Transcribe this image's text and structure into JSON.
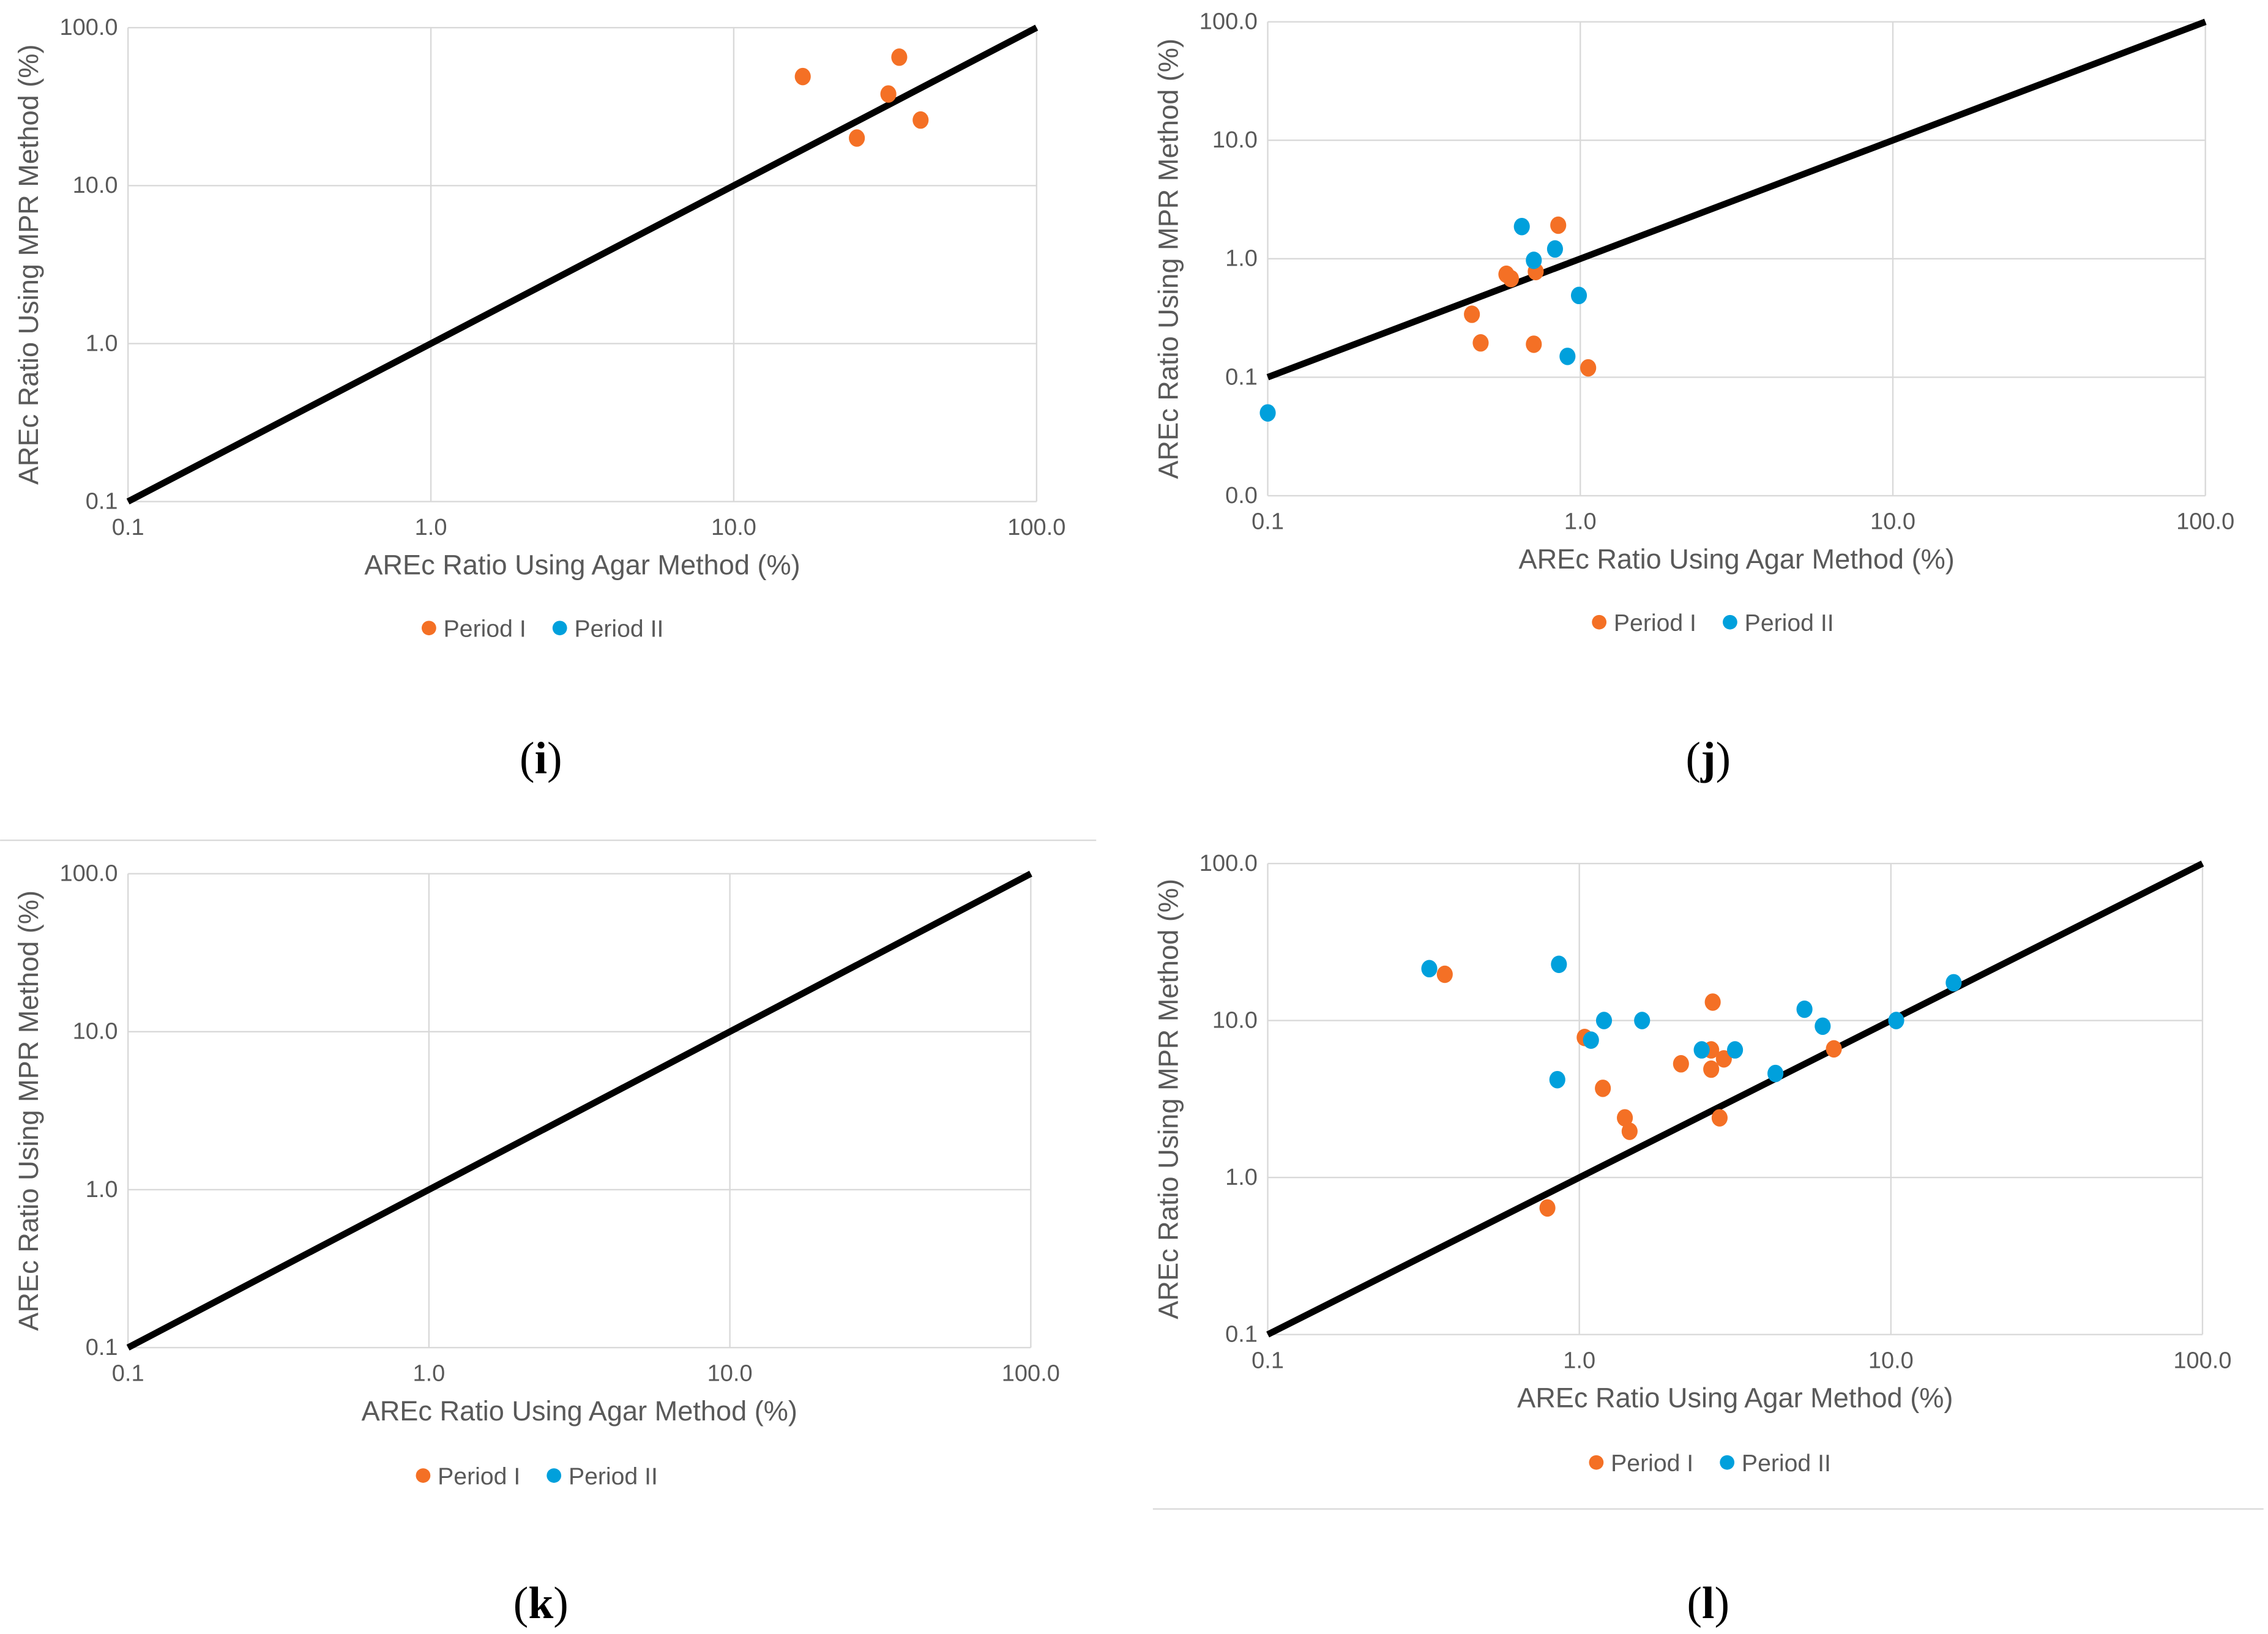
{
  "colors": {
    "period1": "#f47025",
    "period2": "#00a0dc",
    "reference_line": "#000000",
    "grid": "#d9d9d9"
  },
  "chart_data": [
    {
      "panel": "i",
      "caption_open": "(",
      "caption_letter": "i",
      "caption_close": ")",
      "type": "scatter",
      "title": "",
      "xlabel": "AREc Ratio Using Agar Method (%)",
      "ylabel": "AREc Ratio Using MPR Method (%)",
      "xscale": "log",
      "yscale": "log",
      "xlim": [
        0.1,
        100
      ],
      "ylim": [
        0.1,
        100
      ],
      "xticks": [
        0.1,
        1,
        10,
        100
      ],
      "xtick_labels": [
        "0.1",
        "1.0",
        "10.0",
        "100.0"
      ],
      "yticks": [
        0.1,
        1,
        10,
        100
      ],
      "ytick_labels": [
        "0.1",
        "1.0",
        "10.0",
        "100.0"
      ],
      "grid": true,
      "legend_position": "bottom",
      "reference_line": {
        "type": "y=x",
        "from": [
          0.1,
          0.1
        ],
        "to": [
          100,
          100
        ]
      },
      "series": [
        {
          "name": "Period I",
          "color": "#f47025",
          "points": [
            [
              16.9,
              49
            ],
            [
              35.2,
              65
            ],
            [
              32.4,
              38
            ],
            [
              25.5,
              20
            ],
            [
              41.4,
              26
            ]
          ]
        },
        {
          "name": "Period II",
          "color": "#00a0dc",
          "points": []
        }
      ]
    },
    {
      "panel": "j",
      "caption_open": "(",
      "caption_letter": "j",
      "caption_close": ")",
      "type": "scatter",
      "title": "",
      "xlabel": "AREc Ratio Using Agar Method (%)",
      "ylabel": "AREc Ratio Using MPR Method (%)",
      "xscale": "log",
      "yscale": "log",
      "xlim": [
        0.1,
        100
      ],
      "ylim": [
        0.01,
        100
      ],
      "xticks": [
        0.1,
        1,
        10,
        100
      ],
      "xtick_labels": [
        "0.1",
        "1.0",
        "10.0",
        "100.0"
      ],
      "yticks": [
        0.01,
        0.1,
        1,
        10,
        100
      ],
      "ytick_labels": [
        "0.0",
        "0.1",
        "1.0",
        "10.0",
        "100.0"
      ],
      "grid": true,
      "legend_position": "bottom",
      "reference_line": {
        "type": "y=x",
        "from": [
          0.1,
          0.1
        ],
        "to": [
          100,
          100
        ]
      },
      "series": [
        {
          "name": "Period I",
          "color": "#f47025",
          "points": [
            [
              0.85,
              1.92
            ],
            [
              0.58,
              0.74
            ],
            [
              0.6,
              0.68
            ],
            [
              0.72,
              0.78
            ],
            [
              0.45,
              0.34
            ],
            [
              0.48,
              0.195
            ],
            [
              0.71,
              0.19
            ],
            [
              1.06,
              0.12
            ]
          ]
        },
        {
          "name": "Period II",
          "color": "#00a0dc",
          "points": [
            [
              0.65,
              1.87
            ],
            [
              0.83,
              1.21
            ],
            [
              0.71,
              0.97
            ],
            [
              0.99,
              0.49
            ],
            [
              0.91,
              0.15
            ],
            [
              0.1,
              0.05
            ]
          ]
        }
      ]
    },
    {
      "panel": "k",
      "caption_open": "(",
      "caption_letter": "k",
      "caption_close": ")",
      "type": "scatter",
      "title": "",
      "xlabel": "AREc Ratio Using Agar Method (%)",
      "ylabel": "AREc Ratio Using MPR Method (%)",
      "xscale": "log",
      "yscale": "log",
      "xlim": [
        0.1,
        100
      ],
      "ylim": [
        0.1,
        100
      ],
      "xticks": [
        0.1,
        1,
        10,
        100
      ],
      "xtick_labels": [
        "0.1",
        "1.0",
        "10.0",
        "100.0"
      ],
      "yticks": [
        0.1,
        1,
        10,
        100
      ],
      "ytick_labels": [
        "0.1",
        "1.0",
        "10.0",
        "100.0"
      ],
      "grid": true,
      "legend_position": "bottom",
      "reference_line": {
        "type": "y=x",
        "from": [
          0.1,
          0.1
        ],
        "to": [
          100,
          100
        ]
      },
      "series": [
        {
          "name": "Period I",
          "color": "#f47025",
          "points": []
        },
        {
          "name": "Period II",
          "color": "#00a0dc",
          "points": []
        }
      ]
    },
    {
      "panel": "l",
      "caption_open": "(",
      "caption_letter": "l",
      "caption_close": ")",
      "type": "scatter",
      "title": "",
      "xlabel": "AREc Ratio Using Agar Method (%)",
      "ylabel": "AREc Ratio Using MPR Method (%)",
      "xscale": "log",
      "yscale": "log",
      "xlim": [
        0.1,
        100
      ],
      "ylim": [
        0.1,
        100
      ],
      "xticks": [
        0.1,
        1,
        10,
        100
      ],
      "xtick_labels": [
        "0.1",
        "1.0",
        "10.0",
        "100.0"
      ],
      "yticks": [
        0.1,
        1,
        10,
        100
      ],
      "ytick_labels": [
        "0.1",
        "1.0",
        "10.0",
        "100.0"
      ],
      "grid": true,
      "legend_position": "bottom",
      "reference_line": {
        "type": "y=x",
        "from": [
          0.1,
          0.1
        ],
        "to": [
          100,
          100
        ]
      },
      "series": [
        {
          "name": "Period I",
          "color": "#f47025",
          "points": [
            [
              0.37,
              19.7
            ],
            [
              2.68,
              13.1
            ],
            [
              1.04,
              7.8
            ],
            [
              2.65,
              6.5
            ],
            [
              2.91,
              5.7
            ],
            [
              2.12,
              5.3
            ],
            [
              2.65,
              4.9
            ],
            [
              1.19,
              3.7
            ],
            [
              6.56,
              6.6
            ],
            [
              1.4,
              2.4
            ],
            [
              2.82,
              2.4
            ],
            [
              1.45,
              1.97
            ],
            [
              0.79,
              0.64
            ]
          ]
        },
        {
          "name": "Period II",
          "color": "#00a0dc",
          "points": [
            [
              0.33,
              21.4
            ],
            [
              0.86,
              22.8
            ],
            [
              15.9,
              17.4
            ],
            [
              5.28,
              11.8
            ],
            [
              6.04,
              9.2
            ],
            [
              1.2,
              10.0
            ],
            [
              1.59,
              10.0
            ],
            [
              10.4,
              10.0
            ],
            [
              1.09,
              7.5
            ],
            [
              2.47,
              6.5
            ],
            [
              3.16,
              6.5
            ],
            [
              4.26,
              4.6
            ],
            [
              0.85,
              4.2
            ]
          ]
        }
      ]
    }
  ]
}
